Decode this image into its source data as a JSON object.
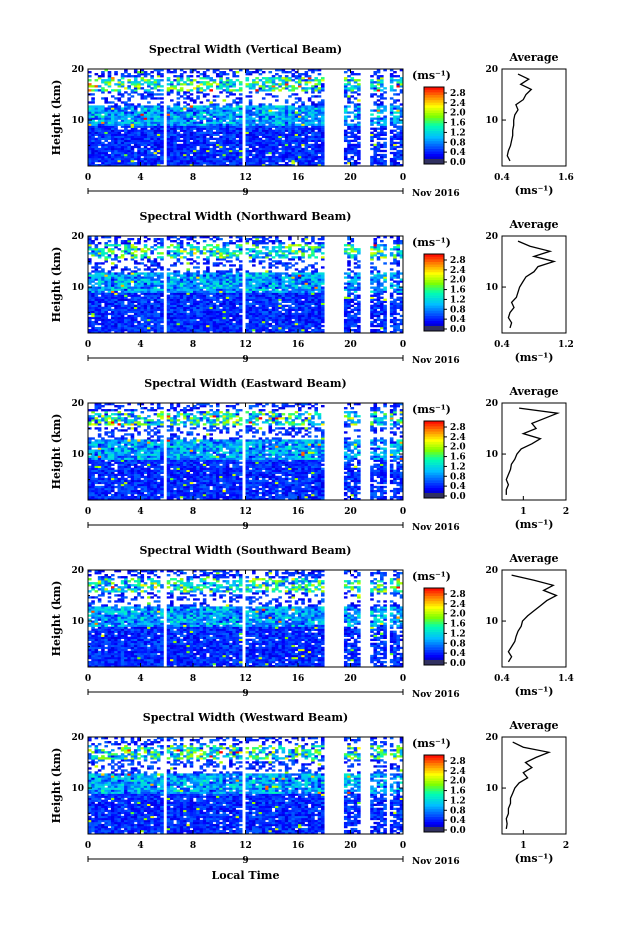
{
  "figure": {
    "xlabel": "Local Time",
    "date_label": "Nov 2016",
    "day_label": "9",
    "colorbar_unit": "(ms⁻¹)",
    "colorbar_ticks": [
      "0.0",
      "0.4",
      "0.8",
      "1.2",
      "1.6",
      "2.0",
      "2.4",
      "2.8"
    ],
    "avg_title": "Average",
    "avg_xlabel": "(ms⁻¹)",
    "ylabel": "Height (km)",
    "x_ticks": [
      "0",
      "4",
      "8",
      "12",
      "16",
      "20",
      "0"
    ],
    "y_ticks": [
      "20",
      "10"
    ]
  },
  "chart_data": [
    {
      "type": "heatmap",
      "title": "Spectral Width (Vertical Beam)",
      "ylabel": "Height (km)",
      "xlabel": "Local Time",
      "x_range_hours": [
        0,
        24
      ],
      "y_range_km": [
        1,
        20
      ],
      "color_range": [
        0,
        2.8
      ],
      "avg_profile": {
        "title": "Average",
        "xlim": [
          0.4,
          1.6
        ],
        "x_ticks": [
          "0.4",
          "1.6"
        ],
        "heights_km": [
          2,
          3,
          4,
          5,
          6,
          7,
          8,
          9,
          10,
          11,
          12,
          13,
          14,
          15,
          16,
          17,
          18,
          19
        ],
        "values": [
          0.55,
          0.5,
          0.52,
          0.56,
          0.58,
          0.6,
          0.6,
          0.62,
          0.62,
          0.64,
          0.7,
          0.66,
          0.8,
          0.85,
          0.95,
          0.75,
          0.9,
          0.7
        ]
      }
    },
    {
      "type": "heatmap",
      "title": "Spectral Width (Northward Beam)",
      "ylabel": "Height (km)",
      "xlabel": "Local Time",
      "x_range_hours": [
        0,
        24
      ],
      "y_range_km": [
        1,
        20
      ],
      "color_range": [
        0,
        2.8
      ],
      "avg_profile": {
        "title": "Average",
        "xlim": [
          0.4,
          1.2
        ],
        "x_ticks": [
          "0.4",
          "1.2"
        ],
        "heights_km": [
          2,
          3,
          4,
          5,
          6,
          7,
          8,
          9,
          10,
          11,
          12,
          13,
          14,
          15,
          16,
          17,
          18,
          19
        ],
        "values": [
          0.5,
          0.52,
          0.48,
          0.5,
          0.55,
          0.52,
          0.58,
          0.6,
          0.62,
          0.66,
          0.7,
          0.8,
          0.85,
          1.05,
          0.8,
          1.0,
          0.75,
          0.6
        ]
      }
    },
    {
      "type": "heatmap",
      "title": "Spectral Width (Eastward Beam)",
      "ylabel": "Height (km)",
      "xlabel": "Local Time",
      "x_range_hours": [
        0,
        24
      ],
      "y_range_km": [
        1,
        20
      ],
      "color_range": [
        0,
        2.8
      ],
      "avg_profile": {
        "title": "Average",
        "xlim": [
          0.5,
          2
        ],
        "x_ticks": [
          "1",
          "2"
        ],
        "heights_km": [
          2,
          3,
          4,
          5,
          6,
          7,
          8,
          9,
          10,
          11,
          12,
          13,
          14,
          15,
          16,
          17,
          18,
          19
        ],
        "values": [
          0.6,
          0.6,
          0.65,
          0.6,
          0.65,
          0.7,
          0.72,
          0.8,
          0.85,
          0.95,
          1.2,
          1.4,
          1.0,
          1.3,
          1.2,
          1.5,
          1.8,
          0.9
        ]
      }
    },
    {
      "type": "heatmap",
      "title": "Spectral Width (Southward Beam)",
      "ylabel": "Height (km)",
      "xlabel": "Local Time",
      "x_range_hours": [
        0,
        24
      ],
      "y_range_km": [
        1,
        20
      ],
      "color_range": [
        0,
        2.8
      ],
      "avg_profile": {
        "title": "Average",
        "xlim": [
          0.4,
          1.4
        ],
        "x_ticks": [
          "0.4",
          "1.4"
        ],
        "heights_km": [
          2,
          3,
          4,
          5,
          6,
          7,
          8,
          9,
          10,
          11,
          12,
          13,
          14,
          15,
          16,
          17,
          18,
          19
        ],
        "values": [
          0.5,
          0.55,
          0.5,
          0.55,
          0.6,
          0.62,
          0.65,
          0.7,
          0.72,
          0.8,
          0.9,
          1.0,
          1.1,
          1.25,
          1.05,
          1.2,
          0.9,
          0.55
        ]
      }
    },
    {
      "type": "heatmap",
      "title": "Spectral Width (Westward Beam)",
      "ylabel": "Height (km)",
      "xlabel": "Local Time",
      "x_range_hours": [
        0,
        24
      ],
      "y_range_km": [
        1,
        20
      ],
      "color_range": [
        0,
        2.8
      ],
      "avg_profile": {
        "title": "Average",
        "xlim": [
          0.5,
          2
        ],
        "x_ticks": [
          "1",
          "2"
        ],
        "heights_km": [
          2,
          3,
          4,
          5,
          6,
          7,
          8,
          9,
          10,
          11,
          12,
          13,
          14,
          15,
          16,
          17,
          18,
          19
        ],
        "values": [
          0.6,
          0.62,
          0.6,
          0.65,
          0.65,
          0.7,
          0.7,
          0.75,
          0.8,
          0.9,
          1.1,
          1.0,
          1.2,
          1.05,
          1.3,
          1.6,
          1.0,
          0.75
        ]
      }
    }
  ]
}
